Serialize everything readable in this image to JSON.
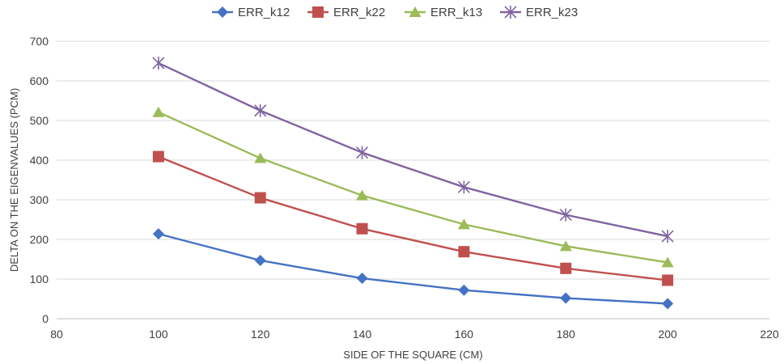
{
  "chart_data": {
    "type": "line",
    "xlabel": "SIDE OF THE SQUARE (CM)",
    "ylabel": "DELTA ON THE EIGENVALUES (PCM)",
    "xlim": [
      80,
      220
    ],
    "ylim": [
      0,
      700
    ],
    "x_ticks": [
      80,
      100,
      120,
      140,
      160,
      180,
      200,
      220
    ],
    "y_ticks": [
      0,
      100,
      200,
      300,
      400,
      500,
      600,
      700
    ],
    "grid": "horizontal",
    "legend_position": "top-center",
    "x": [
      100,
      120,
      140,
      160,
      180,
      200
    ],
    "series": [
      {
        "name": "ERR_k12",
        "color": "#4472C4",
        "marker": "diamond",
        "values": [
          214,
          147,
          102,
          72,
          52,
          38
        ]
      },
      {
        "name": "ERR_k22",
        "color": "#C0504D",
        "marker": "square",
        "values": [
          409,
          305,
          227,
          169,
          127,
          97
        ]
      },
      {
        "name": "ERR_k13",
        "color": "#9BBB59",
        "marker": "triangle",
        "values": [
          521,
          405,
          311,
          238,
          183,
          142
        ]
      },
      {
        "name": "ERR_k23",
        "color": "#8064A2",
        "marker": "star",
        "values": [
          645,
          525,
          419,
          332,
          262,
          208
        ]
      }
    ]
  }
}
